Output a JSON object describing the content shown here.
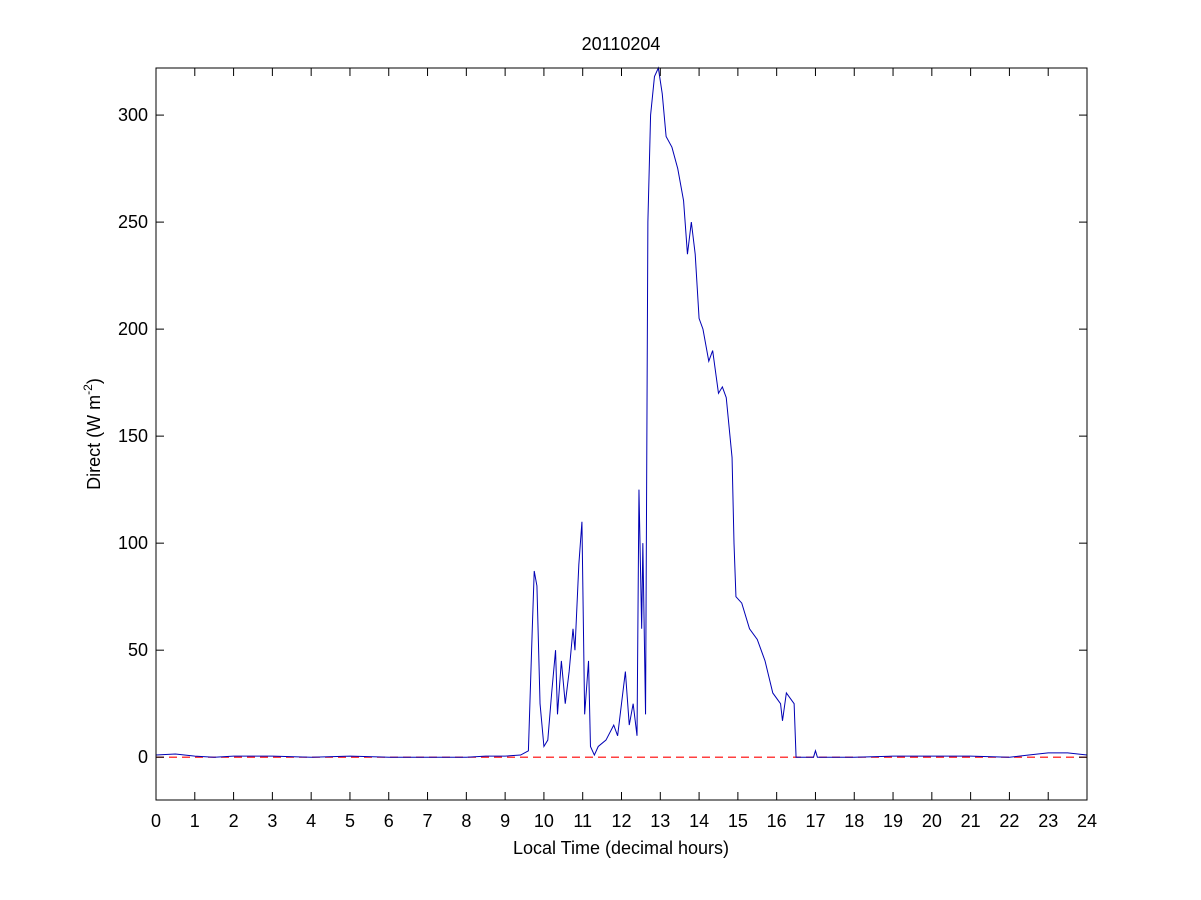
{
  "chart_data": {
    "type": "line",
    "title": "20110204",
    "xlabel": "Local Time (decimal hours)",
    "ylabel_parts": [
      "Direct (W m",
      "-2",
      ")"
    ],
    "xlim": [
      0,
      24
    ],
    "xticks": [
      0,
      1,
      2,
      3,
      4,
      5,
      6,
      7,
      8,
      9,
      10,
      11,
      12,
      13,
      14,
      15,
      16,
      17,
      18,
      19,
      20,
      21,
      22,
      23,
      24
    ],
    "ylim": [
      -20,
      322
    ],
    "yticks": [
      0,
      50,
      100,
      150,
      200,
      250,
      300
    ],
    "grid": false,
    "reference_line": {
      "value": 0,
      "color": "#ff0000",
      "style": "dashed"
    },
    "series": [
      {
        "color": "#0000b4",
        "x": [
          0,
          0.5,
          1,
          1.5,
          2,
          3,
          4,
          5,
          6,
          7,
          8,
          8.5,
          9,
          9.4,
          9.6,
          9.7,
          9.75,
          9.82,
          9.9,
          10,
          10.1,
          10.2,
          10.3,
          10.35,
          10.45,
          10.55,
          10.65,
          10.75,
          10.8,
          10.9,
          10.98,
          11.05,
          11.15,
          11.2,
          11.3,
          11.4,
          11.6,
          11.8,
          11.9,
          12,
          12.1,
          12.2,
          12.3,
          12.4,
          12.45,
          12.52,
          12.55,
          12.62,
          12.68,
          12.75,
          12.85,
          12.95,
          13.05,
          13.15,
          13.3,
          13.45,
          13.6,
          13.7,
          13.8,
          13.9,
          14,
          14.1,
          14.25,
          14.35,
          14.5,
          14.6,
          14.7,
          14.85,
          14.9,
          14.95,
          15.1,
          15.3,
          15.5,
          15.7,
          15.9,
          16.1,
          16.15,
          16.25,
          16.45,
          16.5,
          16.7,
          16.95,
          17,
          17.05,
          17.5,
          18,
          19,
          20,
          21,
          22,
          22.5,
          23,
          23.5,
          24
        ],
        "values": [
          1,
          1.5,
          0.5,
          0,
          0.5,
          0.5,
          0,
          0.5,
          0,
          0,
          0,
          0.5,
          0.5,
          1,
          3,
          60,
          87,
          80,
          25,
          5,
          8,
          30,
          50,
          20,
          45,
          25,
          40,
          60,
          50,
          90,
          110,
          20,
          45,
          5,
          1,
          5,
          8,
          15,
          10,
          25,
          40,
          15,
          25,
          10,
          125,
          60,
          100,
          20,
          250,
          300,
          318,
          322,
          310,
          290,
          285,
          275,
          260,
          235,
          250,
          235,
          205,
          200,
          185,
          190,
          170,
          173,
          168,
          140,
          100,
          75,
          72,
          60,
          55,
          45,
          30,
          25,
          17,
          30,
          25,
          0,
          0,
          0,
          3,
          0,
          0,
          0,
          0.5,
          0.5,
          0.5,
          0,
          1,
          2,
          2,
          1
        ]
      }
    ]
  }
}
